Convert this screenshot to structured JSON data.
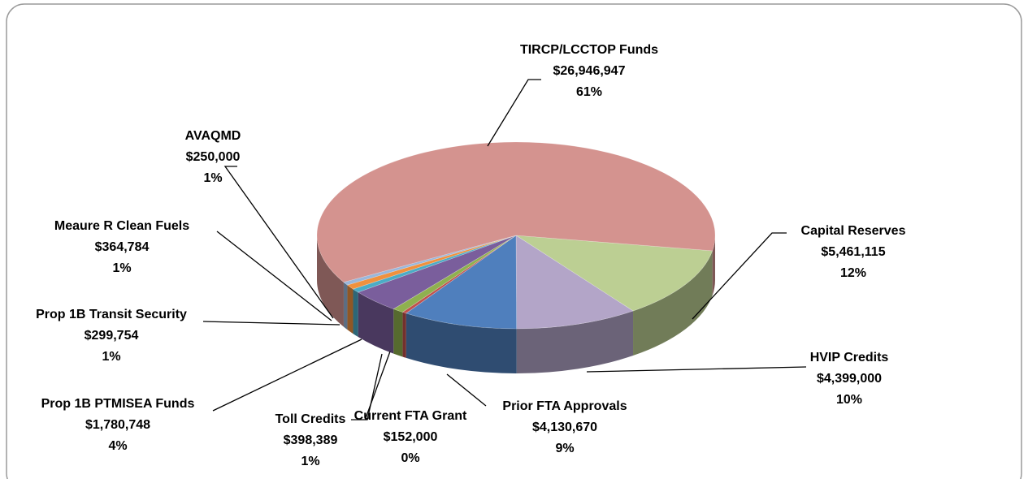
{
  "chart_data": {
    "type": "pie3d",
    "categories": [
      "Capital Reserves",
      "HVIP Credits",
      "Prior FTA Approvals",
      "Current FTA Grant",
      "Toll Credits",
      "Prop 1B PTMISEA Funds",
      "Prop 1B Transit Security",
      "Meaure R Clean Fuels",
      "AVAQMD",
      "TIRCP/LCCTOP Funds"
    ],
    "values": [
      5461115,
      4399000,
      4130670,
      152000,
      398389,
      1780748,
      299754,
      364784,
      250000,
      26946947
    ],
    "value_labels": [
      "$5,461,115",
      "$4,399,000",
      "$4,130,670",
      "$152,000",
      "$398,389",
      "$1,780,748",
      "$299,754",
      "$364,784",
      "$250,000",
      "$26,946,947"
    ],
    "percent_labels": [
      "12%",
      "10%",
      "9%",
      "0%",
      "1%",
      "4%",
      "1%",
      "1%",
      "1%",
      "61%"
    ],
    "colors": [
      "#bccf93",
      "#b3a5c8",
      "#4f7fbd",
      "#c0504d",
      "#8fb04f",
      "#7a5e9c",
      "#4bacc6",
      "#f0913e",
      "#9ab7db",
      "#d4938f"
    ]
  }
}
